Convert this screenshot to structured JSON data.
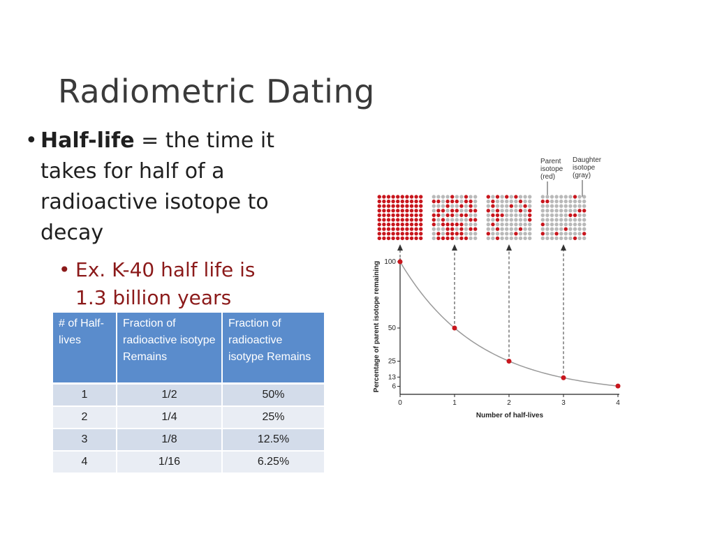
{
  "slide": {
    "title": "Radiometric Dating",
    "bullet1_term": "Half-life",
    "bullet1_rest": " = the time it takes for half of a radioactive isotope to decay",
    "bullet2": "Ex. K-40 half life is 1.3 billion years"
  },
  "table": {
    "headers": [
      "# of Half-lives",
      "Fraction of radioactive isotype Remains",
      "Fraction of radioactive isotype Remains"
    ],
    "rows": [
      [
        "1",
        "1/2",
        "50%"
      ],
      [
        "2",
        "1/4",
        "25%"
      ],
      [
        "3",
        "1/8",
        "12.5%"
      ],
      [
        "4",
        "1/16",
        "6.25%"
      ]
    ]
  },
  "chart_data": {
    "type": "line",
    "x": [
      0,
      1,
      2,
      3,
      4
    ],
    "values": [
      100,
      50,
      25,
      12.5,
      6.25
    ],
    "x_ticks": [
      "0",
      "1",
      "2",
      "3",
      "4"
    ],
    "y_ticks": [
      {
        "value": 100,
        "label": "100"
      },
      {
        "value": 50,
        "label": "50"
      },
      {
        "value": 25,
        "label": "25"
      },
      {
        "value": 13,
        "label": "13"
      },
      {
        "value": 6,
        "label": "6"
      }
    ],
    "xlabel": "Number of half-lives",
    "ylabel": "Percentage of parent isotope remaining",
    "xlim": [
      0,
      4
    ],
    "ylim": [
      0,
      100
    ],
    "grid": false,
    "annotations": {
      "parent_line1": "Parent",
      "parent_line2": "isotope",
      "parent_line3": "(red)",
      "daughter_line1": "Daughter",
      "daughter_line2": "isotope",
      "daughter_line3": "(gray)"
    },
    "grids": [
      {
        "x": 0,
        "red_fraction": 1.0
      },
      {
        "x": 1,
        "red_fraction": 0.5
      },
      {
        "x": 2,
        "red_fraction": 0.25
      },
      {
        "x": 3,
        "red_fraction": 0.125
      }
    ],
    "colors": {
      "parent": "#c8161d",
      "daughter": "#b9b9b9",
      "curve": "#9a9a9a",
      "point": "#c8161d"
    }
  }
}
